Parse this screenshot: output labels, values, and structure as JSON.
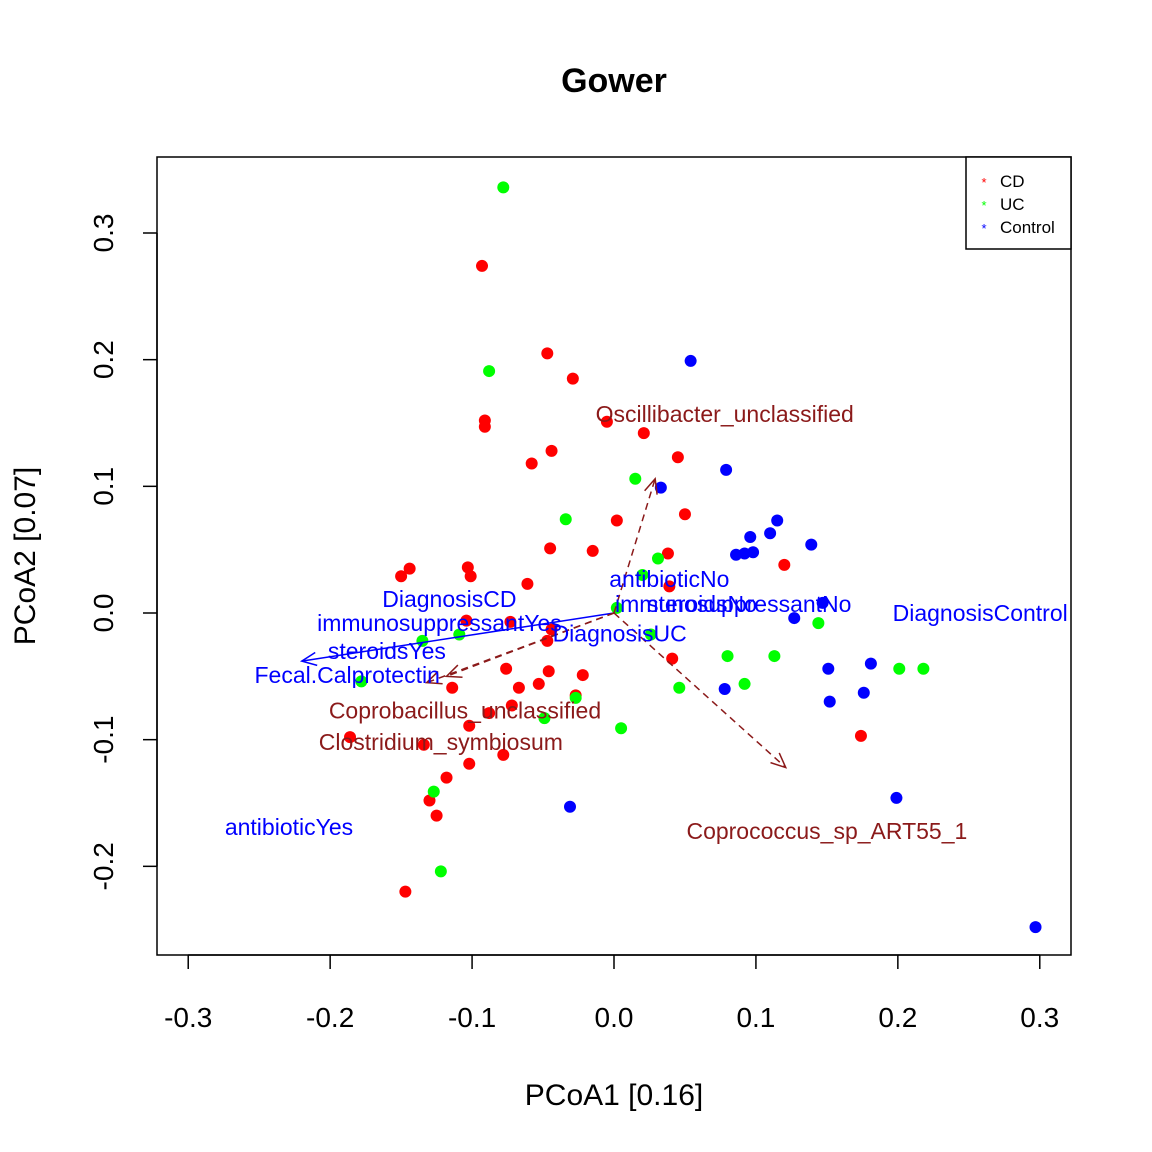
{
  "chart_data": {
    "type": "scatter",
    "title": "Gower",
    "xlabel": "PCoA1 [0.16]",
    "ylabel": "PCoA2 [0.07]",
    "xlim": [
      -0.322,
      0.322
    ],
    "ylim": [
      -0.27,
      0.36
    ],
    "x_ticks": [
      -0.3,
      -0.2,
      -0.1,
      0.0,
      0.1,
      0.2,
      0.3
    ],
    "x_tick_labels": [
      "-0.3",
      "-0.2",
      "-0.1",
      "0.0",
      "0.1",
      "0.2",
      "0.3"
    ],
    "y_ticks": [
      -0.2,
      -0.1,
      0.0,
      0.1,
      0.2,
      0.3
    ],
    "y_tick_labels": [
      "-0.2",
      "-0.1",
      "0.0",
      "0.1",
      "0.2",
      "0.3"
    ],
    "legend": {
      "position": "top-right",
      "entries": [
        {
          "label": "CD",
          "color": "#ff0000"
        },
        {
          "label": "UC",
          "color": "#00ff00"
        },
        {
          "label": "Control",
          "color": "#0000ff"
        }
      ]
    },
    "series": [
      {
        "name": "CD",
        "color": "#ff0000",
        "points": [
          [
            -0.093,
            0.274
          ],
          [
            -0.047,
            0.205
          ],
          [
            -0.029,
            0.185
          ],
          [
            -0.091,
            0.152
          ],
          [
            -0.091,
            0.147
          ],
          [
            -0.005,
            0.151
          ],
          [
            0.021,
            0.142
          ],
          [
            -0.044,
            0.128
          ],
          [
            -0.058,
            0.118
          ],
          [
            0.045,
            0.123
          ],
          [
            0.002,
            0.073
          ],
          [
            0.05,
            0.078
          ],
          [
            -0.045,
            0.051
          ],
          [
            -0.015,
            0.049
          ],
          [
            0.038,
            0.047
          ],
          [
            -0.144,
            0.035
          ],
          [
            -0.15,
            0.029
          ],
          [
            -0.103,
            0.036
          ],
          [
            -0.101,
            0.029
          ],
          [
            -0.061,
            0.023
          ],
          [
            0.039,
            0.021
          ],
          [
            0.12,
            0.038
          ],
          [
            -0.073,
            -0.007
          ],
          [
            -0.104,
            -0.006
          ],
          [
            -0.044,
            -0.013
          ],
          [
            -0.047,
            -0.022
          ],
          [
            0.041,
            -0.036
          ],
          [
            -0.076,
            -0.044
          ],
          [
            -0.046,
            -0.046
          ],
          [
            -0.022,
            -0.049
          ],
          [
            -0.053,
            -0.056
          ],
          [
            -0.067,
            -0.059
          ],
          [
            -0.114,
            -0.059
          ],
          [
            -0.027,
            -0.065
          ],
          [
            -0.072,
            -0.073
          ],
          [
            -0.088,
            -0.079
          ],
          [
            -0.102,
            -0.089
          ],
          [
            -0.186,
            -0.098
          ],
          [
            -0.134,
            -0.104
          ],
          [
            -0.102,
            -0.119
          ],
          [
            -0.078,
            -0.112
          ],
          [
            -0.118,
            -0.13
          ],
          [
            -0.13,
            -0.148
          ],
          [
            -0.125,
            -0.16
          ],
          [
            -0.147,
            -0.22
          ],
          [
            0.174,
            -0.097
          ]
        ]
      },
      {
        "name": "UC",
        "color": "#00ff00",
        "points": [
          [
            -0.078,
            0.336
          ],
          [
            -0.088,
            0.191
          ],
          [
            0.015,
            0.106
          ],
          [
            -0.034,
            0.074
          ],
          [
            0.031,
            0.043
          ],
          [
            0.02,
            0.03
          ],
          [
            0.002,
            0.004
          ],
          [
            -0.109,
            -0.017
          ],
          [
            -0.135,
            -0.022
          ],
          [
            0.026,
            -0.017
          ],
          [
            0.08,
            -0.034
          ],
          [
            0.113,
            -0.034
          ],
          [
            0.144,
            -0.008
          ],
          [
            0.201,
            -0.044
          ],
          [
            0.218,
            -0.044
          ],
          [
            -0.178,
            -0.054
          ],
          [
            0.046,
            -0.059
          ],
          [
            0.092,
            -0.056
          ],
          [
            -0.027,
            -0.067
          ],
          [
            -0.049,
            -0.083
          ],
          [
            0.005,
            -0.091
          ],
          [
            -0.127,
            -0.141
          ],
          [
            -0.122,
            -0.204
          ]
        ]
      },
      {
        "name": "Control",
        "color": "#0000ff",
        "points": [
          [
            0.054,
            0.199
          ],
          [
            0.079,
            0.113
          ],
          [
            0.033,
            0.099
          ],
          [
            0.115,
            0.073
          ],
          [
            0.11,
            0.063
          ],
          [
            0.096,
            0.06
          ],
          [
            0.086,
            0.046
          ],
          [
            0.092,
            0.047
          ],
          [
            0.098,
            0.048
          ],
          [
            0.139,
            0.054
          ],
          [
            0.147,
            0.008
          ],
          [
            0.127,
            -0.004
          ],
          [
            0.151,
            -0.044
          ],
          [
            0.181,
            -0.04
          ],
          [
            0.078,
            -0.06
          ],
          [
            0.176,
            -0.063
          ],
          [
            0.152,
            -0.07
          ],
          [
            -0.031,
            -0.153
          ],
          [
            0.199,
            -0.146
          ],
          [
            0.297,
            -0.248
          ]
        ]
      }
    ],
    "vectors": [
      {
        "label": "Fecal.Calprotectin",
        "color": "#0000ff",
        "style": "solid",
        "x": -0.22,
        "y": -0.038,
        "label_x": -0.188,
        "label_y": -0.049
      },
      {
        "label": "Oscillibacter_unclassified",
        "color": "#8b1a1a",
        "style": "dashed",
        "x": 0.029,
        "y": 0.106,
        "label_x": 0.078,
        "label_y": 0.157
      },
      {
        "label": "Coprococcus_sp_ART55_1",
        "color": "#8b1a1a",
        "style": "dashed",
        "x": 0.121,
        "y": -0.122,
        "label_x": 0.15,
        "label_y": -0.172
      },
      {
        "label": "Coprobacillus_unclassified",
        "color": "#8b1a1a",
        "style": "dashed",
        "x": -0.132,
        "y": -0.055,
        "label_x": -0.105,
        "label_y": -0.077
      },
      {
        "label": "Clostridium_symbiosum",
        "color": "#8b1a1a",
        "style": "dashed",
        "x": -0.118,
        "y": -0.05,
        "label_x": -0.122,
        "label_y": -0.102
      },
      {
        "label": "DiagnosisCD",
        "label_x": -0.116,
        "label_y": 0.011,
        "color": "#0000ff"
      },
      {
        "label": "immunosuppressantYes",
        "label_x": -0.123,
        "label_y": -0.008,
        "color": "#0000ff"
      },
      {
        "label": "steroidsYes",
        "label_x": -0.16,
        "label_y": -0.03,
        "color": "#0000ff"
      },
      {
        "label": "antibioticNo",
        "label_x": 0.039,
        "label_y": 0.027,
        "color": "#0000ff"
      },
      {
        "label": "immunosuppressantNo",
        "label_x": 0.084,
        "label_y": 0.007,
        "color": "#0000ff"
      },
      {
        "label": "steroidsNo",
        "label_x": 0.062,
        "label_y": 0.007,
        "color": "#0000ff"
      },
      {
        "label": "DiagnosisUC",
        "label_x": 0.004,
        "label_y": -0.016,
        "color": "#0000ff"
      },
      {
        "label": "DiagnosisControl",
        "label_x": 0.258,
        "label_y": 0.0,
        "color": "#0000ff"
      },
      {
        "label": "antibioticYes",
        "label_x": -0.229,
        "label_y": -0.169,
        "color": "#0000ff"
      }
    ]
  }
}
